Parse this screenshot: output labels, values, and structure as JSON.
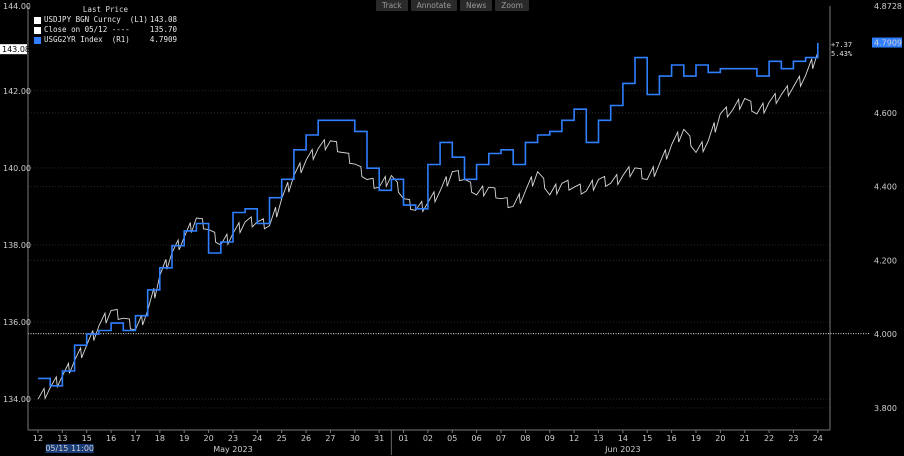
{
  "legend": {
    "title": "Last Price",
    "items": [
      {
        "label": "USDJPY BGN Curncy  (L1)",
        "value": "143.08",
        "color": "#ffffff"
      },
      {
        "label": "Close on 05/12 ----",
        "value": "135.70",
        "color": "#ffffff"
      },
      {
        "label": "USGG2YR Index  (R1)",
        "value": "4.7909",
        "color": "#2f7fff"
      }
    ]
  },
  "toolbar": {
    "items": [
      "Track",
      "Annotate",
      "News",
      "Zoom"
    ]
  },
  "stats": {
    "change": "+7.37",
    "pct": "5.43%"
  },
  "chart_data": {
    "type": "line",
    "x_tick_labels": [
      "12",
      "13",
      "15",
      "16",
      "17",
      "18",
      "19",
      "20",
      "23",
      "24",
      "25",
      "26",
      "27",
      "30",
      "31",
      "01",
      "02",
      "05",
      "06",
      "07",
      "08",
      "09",
      "12",
      "13",
      "14",
      "15",
      "16",
      "19",
      "20",
      "21",
      "22",
      "23",
      "24"
    ],
    "month_labels": [
      "May 2023",
      "Jun 2023"
    ],
    "cursor_label": "05/15 11:00",
    "left_axis": {
      "ticks": [
        "134.00",
        "136.00",
        "138.00",
        "140.00",
        "142.00"
      ],
      "top_tag": "144.00",
      "range": [
        133.2,
        144.2
      ],
      "last_tag": "143.08"
    },
    "right_axis": {
      "ticks": [
        "3.800",
        "4.000",
        "4.200",
        "4.400",
        "4.600"
      ],
      "top_tag": "4.8728",
      "range": [
        3.74,
        4.89
      ],
      "last_tag": "4.7909"
    },
    "reference_line": {
      "value": 135.7,
      "label": "Close on 05/12"
    },
    "series": [
      {
        "name": "USDJPY BGN Curncy",
        "axis": "left",
        "color": "#ffffff",
        "x": [
          0,
          0.5,
          1,
          1.5,
          2,
          2.5,
          3,
          3.5,
          4,
          4.5,
          5,
          5.5,
          6,
          6.5,
          7,
          7.5,
          8,
          8.5,
          9,
          9.5,
          10,
          10.5,
          11,
          11.5,
          12,
          12.5,
          13,
          13.5,
          14,
          14.5,
          15,
          15.5,
          16,
          16.5,
          17,
          17.5,
          18,
          18.5,
          19,
          19.5,
          20,
          20.5,
          21,
          21.5,
          22,
          22.5,
          23,
          23.5,
          24,
          24.5,
          25,
          25.5,
          26,
          26.5,
          27,
          27.5,
          28,
          28.5,
          29,
          29.5,
          30,
          30.5,
          31,
          31.5,
          32
        ],
        "values": [
          134.0,
          134.3,
          134.6,
          135.0,
          135.4,
          135.9,
          136.3,
          136.1,
          135.8,
          136.3,
          137.2,
          137.8,
          138.2,
          138.7,
          138.4,
          138.0,
          138.3,
          138.6,
          138.6,
          138.5,
          139.2,
          139.8,
          140.2,
          140.5,
          140.7,
          140.4,
          140.1,
          139.7,
          139.5,
          139.8,
          139.2,
          138.9,
          139.1,
          139.4,
          139.9,
          139.7,
          139.3,
          139.5,
          139.2,
          139.0,
          139.4,
          139.9,
          139.3,
          139.6,
          139.5,
          139.4,
          139.7,
          139.6,
          139.8,
          140.0,
          139.7,
          140.1,
          140.6,
          141.0,
          140.4,
          140.7,
          141.4,
          141.5,
          141.8,
          141.4,
          141.7,
          141.9,
          142.1,
          142.4,
          143.0
        ]
      },
      {
        "name": "USGG2YR Index",
        "axis": "right",
        "color": "#2f7fff",
        "x": [
          0,
          0.5,
          1,
          1.5,
          2,
          2.5,
          3,
          3.5,
          4,
          4.5,
          5,
          5.5,
          6,
          6.5,
          7,
          7.5,
          8,
          8.5,
          9,
          9.5,
          10,
          10.5,
          11,
          11.5,
          12,
          12.5,
          13,
          13.5,
          14,
          14.5,
          15,
          15.5,
          16,
          16.5,
          17,
          17.5,
          18,
          18.5,
          19,
          19.5,
          20,
          20.5,
          21,
          21.5,
          22,
          22.5,
          23,
          23.5,
          24,
          24.5,
          25,
          25.5,
          26,
          26.5,
          27,
          27.5,
          28,
          28.5,
          29,
          29.5,
          30,
          30.5,
          31,
          31.5,
          32
        ],
        "values": [
          3.88,
          3.86,
          3.9,
          3.97,
          4.0,
          4.01,
          4.03,
          4.01,
          4.05,
          4.12,
          4.18,
          4.24,
          4.28,
          4.3,
          4.22,
          4.25,
          4.33,
          4.34,
          4.3,
          4.37,
          4.42,
          4.5,
          4.54,
          4.58,
          4.58,
          4.58,
          4.55,
          4.45,
          4.39,
          4.42,
          4.35,
          4.34,
          4.46,
          4.52,
          4.48,
          4.42,
          4.46,
          4.49,
          4.5,
          4.46,
          4.52,
          4.54,
          4.55,
          4.58,
          4.61,
          4.52,
          4.58,
          4.62,
          4.68,
          4.75,
          4.65,
          4.7,
          4.73,
          4.7,
          4.73,
          4.71,
          4.72,
          4.72,
          4.72,
          4.7,
          4.74,
          4.72,
          4.74,
          4.75,
          4.79
        ]
      }
    ]
  }
}
